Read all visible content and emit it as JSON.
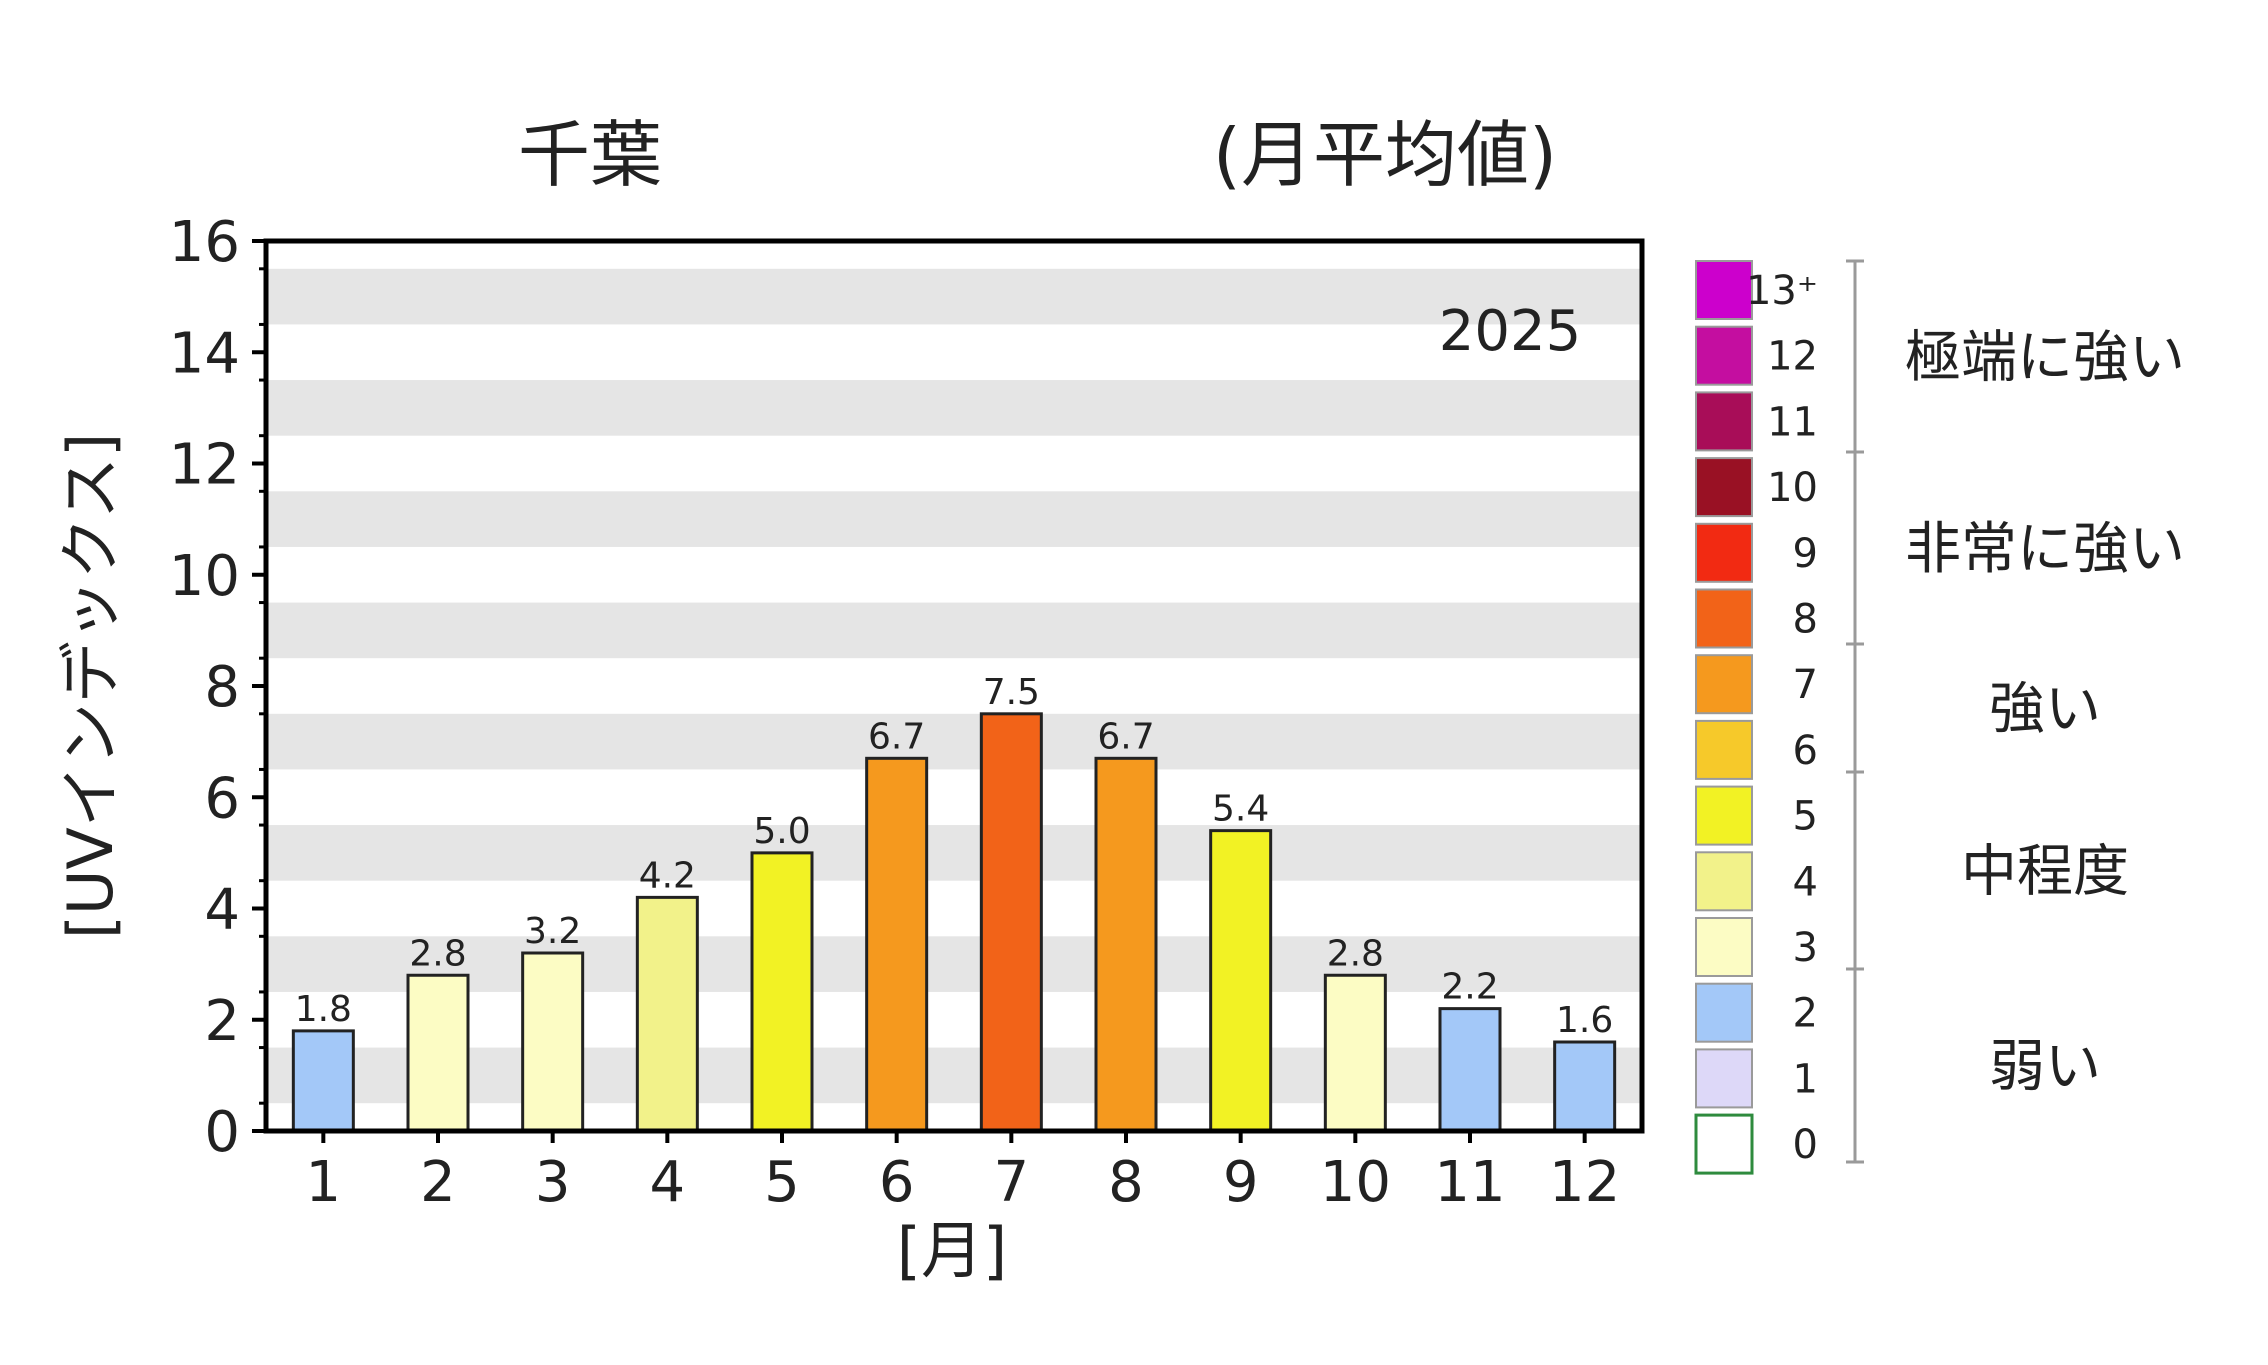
{
  "title_left": "千葉",
  "title_right": "(月平均値)",
  "year_label": "2025",
  "chart_data": {
    "type": "bar",
    "categories": [
      "1",
      "2",
      "3",
      "4",
      "5",
      "6",
      "7",
      "8",
      "9",
      "10",
      "11",
      "12"
    ],
    "values": [
      1.8,
      2.8,
      3.2,
      4.2,
      5.0,
      6.7,
      7.5,
      6.7,
      5.4,
      2.8,
      2.2,
      1.6
    ],
    "value_labels": [
      "1.8",
      "2.8",
      "3.2",
      "4.2",
      "5.0",
      "6.7",
      "7.5",
      "6.7",
      "5.4",
      "2.8",
      "2.2",
      "1.6"
    ],
    "xlabel": "[月]",
    "ylabel": "[UVインデックス]",
    "ylim": [
      0,
      16
    ],
    "yticks": [
      "0",
      "2",
      "4",
      "6",
      "8",
      "10",
      "12",
      "14",
      "16"
    ],
    "grid": "horizontal alternating bands",
    "bar_colors": [
      "#a3c8f8",
      "#fcfcc4",
      "#fcfcc4",
      "#f2f28a",
      "#f2f224",
      "#f5991e",
      "#f26318",
      "#f5991e",
      "#f2f224",
      "#fcfcc4",
      "#a3c8f8",
      "#a3c8f8"
    ]
  },
  "legend": {
    "scale": [
      {
        "label": "13⁺",
        "color": "#cc00cc"
      },
      {
        "label": "12",
        "color": "#c40ea0"
      },
      {
        "label": "11",
        "color": "#a80d58"
      },
      {
        "label": "10",
        "color": "#991124"
      },
      {
        "label": "9",
        "color": "#f22a12"
      },
      {
        "label": "8",
        "color": "#f26318"
      },
      {
        "label": "7",
        "color": "#f5991e"
      },
      {
        "label": "6",
        "color": "#f6c92a"
      },
      {
        "label": "5",
        "color": "#f2f224"
      },
      {
        "label": "4",
        "color": "#f2f28a"
      },
      {
        "label": "3",
        "color": "#fcfcc4"
      },
      {
        "label": "2",
        "color": "#a3c8f8"
      },
      {
        "label": "1",
        "color": "#ddd8f8"
      },
      {
        "label": "0",
        "color": "#ffffff"
      }
    ],
    "categories": [
      "極端に強い",
      "非常に強い",
      "強い",
      "中程度",
      "弱い"
    ]
  }
}
